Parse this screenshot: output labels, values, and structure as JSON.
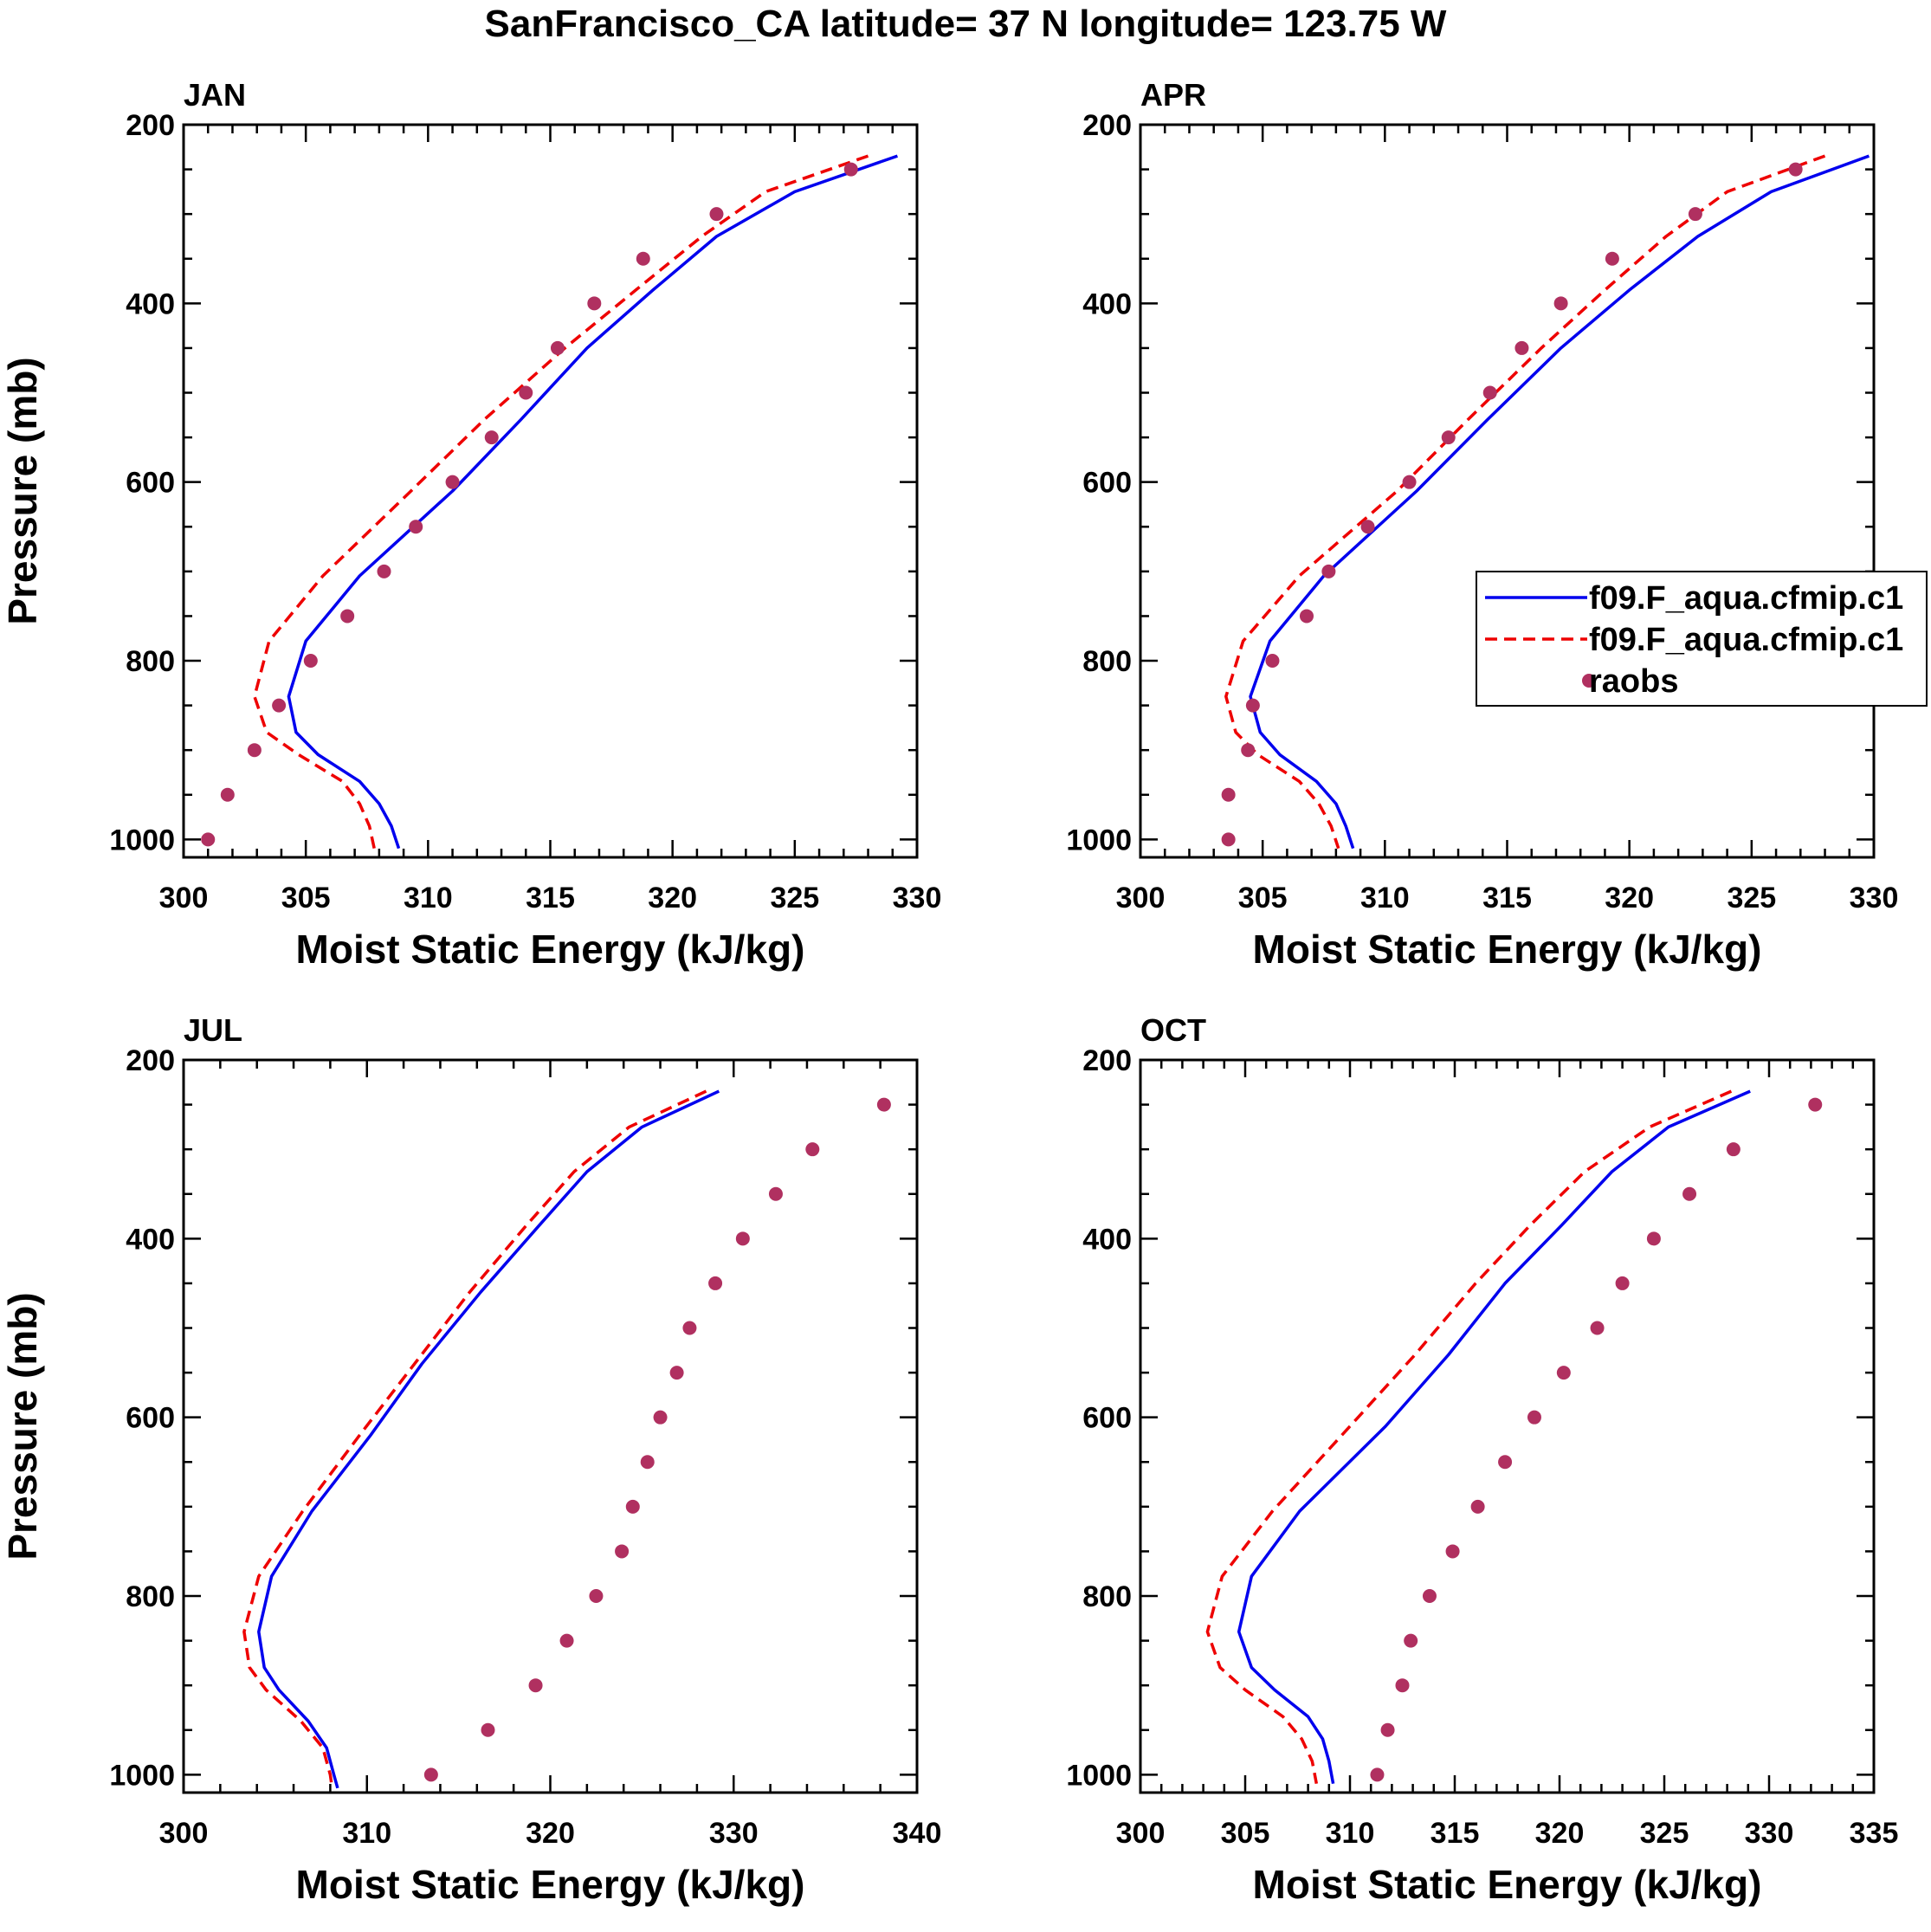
{
  "figure_title": "SanFrancisco_CA  latitude= 37 N longitude= 123.75 W",
  "colors": {
    "model1": "#0000ee",
    "model2": "#ee0000",
    "obs": "#b03060",
    "axis": "#000000"
  },
  "legend": {
    "entries": [
      {
        "label": "f09.F_aqua.cfmip.c1",
        "style": "solid",
        "color": "#0000ee"
      },
      {
        "label": "f09.F_aqua.cfmip.c1",
        "style": "dashed",
        "color": "#ee0000"
      },
      {
        "label": "raobs",
        "style": "marker",
        "color": "#b03060"
      }
    ]
  },
  "chart_data": [
    {
      "type": "line",
      "panel_label": "JAN",
      "xlabel": "Moist Static Energy (kJ/kg)",
      "ylabel": "Pressure (mb)",
      "xlim": [
        300,
        330
      ],
      "ylim": [
        1020,
        200
      ],
      "xticks": [
        300,
        305,
        310,
        315,
        320,
        325,
        330
      ],
      "yticks": [
        200,
        400,
        600,
        800,
        1000
      ],
      "series": [
        {
          "name": "f09.F_aqua.cfmip.c1",
          "style": "solid",
          "points": [
            [
              329.2,
              235
            ],
            [
              325,
              275
            ],
            [
              321.8,
              325
            ],
            [
              319.2,
              385
            ],
            [
              316.5,
              450
            ],
            [
              313.8,
              530
            ],
            [
              311,
              610
            ],
            [
              307.2,
              705
            ],
            [
              305,
              778
            ],
            [
              304.3,
              840
            ],
            [
              304.6,
              880
            ],
            [
              305.5,
              905
            ],
            [
              307.2,
              935
            ],
            [
              308,
              960
            ],
            [
              308.5,
              985
            ],
            [
              308.8,
              1010
            ]
          ]
        },
        {
          "name": "f09.F_aqua.cfmip.c1",
          "style": "dashed",
          "points": [
            [
              328,
              235
            ],
            [
              323.8,
              275
            ],
            [
              321.2,
              325
            ],
            [
              318.5,
              385
            ],
            [
              315.6,
              450
            ],
            [
              312.3,
              530
            ],
            [
              309.3,
              610
            ],
            [
              305.7,
              705
            ],
            [
              303.5,
              778
            ],
            [
              302.9,
              840
            ],
            [
              303.4,
              880
            ],
            [
              304.7,
              905
            ],
            [
              306.5,
              935
            ],
            [
              307.2,
              960
            ],
            [
              307.6,
              985
            ],
            [
              307.8,
              1010
            ]
          ]
        },
        {
          "name": "raobs",
          "style": "markers",
          "points": [
            [
              327.3,
              250
            ],
            [
              321.8,
              300
            ],
            [
              318.8,
              350
            ],
            [
              316.8,
              400
            ],
            [
              315.3,
              450
            ],
            [
              314,
              500
            ],
            [
              312.6,
              550
            ],
            [
              311,
              600
            ],
            [
              309.5,
              650
            ],
            [
              308.2,
              700
            ],
            [
              306.7,
              750
            ],
            [
              305.2,
              800
            ],
            [
              303.9,
              850
            ],
            [
              302.9,
              900
            ],
            [
              301.8,
              950
            ],
            [
              301,
              1000
            ]
          ]
        }
      ]
    },
    {
      "type": "line",
      "panel_label": "APR",
      "xlabel": "Moist Static Energy (kJ/kg)",
      "ylabel": "",
      "xlim": [
        300,
        330
      ],
      "ylim": [
        1020,
        200
      ],
      "xticks": [
        300,
        305,
        310,
        315,
        320,
        325,
        330
      ],
      "yticks": [
        200,
        400,
        600,
        800,
        1000
      ],
      "series": [
        {
          "name": "f09.F_aqua.cfmip.c1",
          "style": "solid",
          "points": [
            [
              329.8,
              235
            ],
            [
              325.8,
              275
            ],
            [
              322.8,
              325
            ],
            [
              320,
              385
            ],
            [
              317.2,
              450
            ],
            [
              314.2,
              530
            ],
            [
              311.3,
              610
            ],
            [
              307.5,
              705
            ],
            [
              305.3,
              778
            ],
            [
              304.5,
              840
            ],
            [
              304.9,
              880
            ],
            [
              305.7,
              905
            ],
            [
              307.2,
              935
            ],
            [
              308,
              960
            ],
            [
              308.4,
              985
            ],
            [
              308.7,
              1010
            ]
          ]
        },
        {
          "name": "f09.F_aqua.cfmip.c1",
          "style": "dashed",
          "points": [
            [
              328,
              235
            ],
            [
              324,
              275
            ],
            [
              321.5,
              325
            ],
            [
              319,
              385
            ],
            [
              316.4,
              450
            ],
            [
              313.4,
              530
            ],
            [
              310.5,
              610
            ],
            [
              306.5,
              705
            ],
            [
              304.2,
              778
            ],
            [
              303.5,
              840
            ],
            [
              303.9,
              880
            ],
            [
              304.8,
              905
            ],
            [
              306.5,
              935
            ],
            [
              307.3,
              960
            ],
            [
              307.8,
              985
            ],
            [
              308.1,
              1010
            ]
          ]
        },
        {
          "name": "raobs",
          "style": "markers",
          "points": [
            [
              326.8,
              250
            ],
            [
              322.7,
              300
            ],
            [
              319.3,
              350
            ],
            [
              317.2,
              400
            ],
            [
              315.6,
              450
            ],
            [
              314.3,
              500
            ],
            [
              312.6,
              550
            ],
            [
              311,
              600
            ],
            [
              309.3,
              650
            ],
            [
              307.7,
              700
            ],
            [
              306.8,
              750
            ],
            [
              305.4,
              800
            ],
            [
              304.6,
              850
            ],
            [
              304.4,
              900
            ],
            [
              303.6,
              950
            ],
            [
              303.6,
              1000
            ]
          ]
        }
      ]
    },
    {
      "type": "line",
      "panel_label": "JUL",
      "xlabel": "Moist Static Energy (kJ/kg)",
      "ylabel": "Pressure (mb)",
      "xlim": [
        300,
        340
      ],
      "ylim": [
        1020,
        200
      ],
      "xticks": [
        300,
        310,
        320,
        330,
        340
      ],
      "yticks": [
        200,
        400,
        600,
        800,
        1000
      ],
      "series": [
        {
          "name": "f09.F_aqua.cfmip.c1",
          "style": "solid",
          "points": [
            [
              329.2,
              235
            ],
            [
              325,
              275
            ],
            [
              322,
              325
            ],
            [
              319.4,
              385
            ],
            [
              316.2,
              460
            ],
            [
              313,
              540
            ],
            [
              310.2,
              620
            ],
            [
              307,
              705
            ],
            [
              304.8,
              778
            ],
            [
              304.1,
              840
            ],
            [
              304.4,
              880
            ],
            [
              305.2,
              905
            ],
            [
              306.8,
              940
            ],
            [
              307.8,
              970
            ],
            [
              308.2,
              1000
            ],
            [
              308.4,
              1015
            ]
          ]
        },
        {
          "name": "f09.F_aqua.cfmip.c1",
          "style": "dashed",
          "points": [
            [
              328.5,
              235
            ],
            [
              324.3,
              275
            ],
            [
              321.3,
              325
            ],
            [
              318.7,
              385
            ],
            [
              315.6,
              460
            ],
            [
              312.6,
              540
            ],
            [
              309.6,
              620
            ],
            [
              306.5,
              705
            ],
            [
              304.1,
              778
            ],
            [
              303.3,
              840
            ],
            [
              303.6,
              880
            ],
            [
              304.5,
              905
            ],
            [
              306.4,
              940
            ],
            [
              307.6,
              970
            ],
            [
              308,
              1000
            ],
            [
              308.1,
              1015
            ]
          ]
        },
        {
          "name": "raobs",
          "style": "markers",
          "points": [
            [
              338.2,
              250
            ],
            [
              334.3,
              300
            ],
            [
              332.3,
              350
            ],
            [
              330.5,
              400
            ],
            [
              329,
              450
            ],
            [
              327.6,
              500
            ],
            [
              326.9,
              550
            ],
            [
              326,
              600
            ],
            [
              325.3,
              650
            ],
            [
              324.5,
              700
            ],
            [
              323.9,
              750
            ],
            [
              322.5,
              800
            ],
            [
              320.9,
              850
            ],
            [
              319.2,
              900
            ],
            [
              316.6,
              950
            ],
            [
              313.5,
              1000
            ]
          ]
        }
      ]
    },
    {
      "type": "line",
      "panel_label": "OCT",
      "xlabel": "Moist Static Energy (kJ/kg)",
      "ylabel": "",
      "xlim": [
        300,
        335
      ],
      "ylim": [
        1020,
        200
      ],
      "xticks": [
        300,
        305,
        310,
        315,
        320,
        325,
        330,
        335
      ],
      "yticks": [
        200,
        400,
        600,
        800,
        1000
      ],
      "series": [
        {
          "name": "f09.F_aqua.cfmip.c1",
          "style": "solid",
          "points": [
            [
              329.1,
              235
            ],
            [
              325.2,
              275
            ],
            [
              322.5,
              325
            ],
            [
              320.1,
              385
            ],
            [
              317.4,
              450
            ],
            [
              314.7,
              530
            ],
            [
              311.7,
              610
            ],
            [
              307.6,
              705
            ],
            [
              305.3,
              778
            ],
            [
              304.7,
              840
            ],
            [
              305.3,
              880
            ],
            [
              306.4,
              905
            ],
            [
              308,
              935
            ],
            [
              308.7,
              960
            ],
            [
              309,
              985
            ],
            [
              309.2,
              1010
            ]
          ]
        },
        {
          "name": "f09.F_aqua.cfmip.c1",
          "style": "dashed",
          "points": [
            [
              328.2,
              235
            ],
            [
              324.3,
              275
            ],
            [
              321.2,
              325
            ],
            [
              318.6,
              385
            ],
            [
              316,
              450
            ],
            [
              313.1,
              530
            ],
            [
              310,
              610
            ],
            [
              306.3,
              705
            ],
            [
              303.9,
              778
            ],
            [
              303.2,
              840
            ],
            [
              303.8,
              880
            ],
            [
              305,
              905
            ],
            [
              306.8,
              935
            ],
            [
              307.7,
              960
            ],
            [
              308.2,
              985
            ],
            [
              308.4,
              1010
            ]
          ]
        },
        {
          "name": "raobs",
          "style": "markers",
          "points": [
            [
              332.2,
              250
            ],
            [
              328.3,
              300
            ],
            [
              326.2,
              350
            ],
            [
              324.5,
              400
            ],
            [
              323,
              450
            ],
            [
              321.8,
              500
            ],
            [
              320.2,
              550
            ],
            [
              318.8,
              600
            ],
            [
              317.4,
              650
            ],
            [
              316.1,
              700
            ],
            [
              314.9,
              750
            ],
            [
              313.8,
              800
            ],
            [
              312.9,
              850
            ],
            [
              312.5,
              900
            ],
            [
              311.8,
              950
            ],
            [
              311.3,
              1000
            ]
          ]
        }
      ]
    }
  ]
}
